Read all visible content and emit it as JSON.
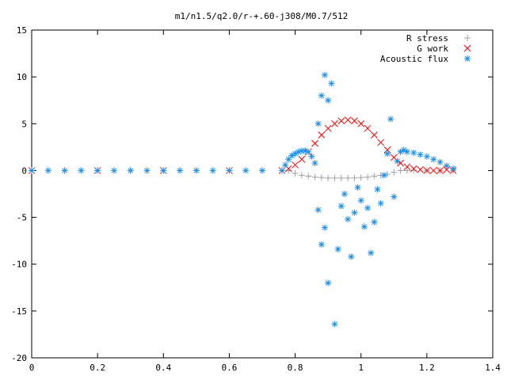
{
  "chart_data": {
    "type": "scatter",
    "title": "m1/n1.5/q2.0/r-+.60-j308/M0.7/512",
    "xlabel": "",
    "ylabel": "",
    "xlim": [
      0,
      1.4
    ],
    "ylim": [
      -20,
      15
    ],
    "x_ticks": [
      "0",
      "0.2",
      "0.4",
      "0.6",
      "0.8",
      "1",
      "1.2",
      "1.4"
    ],
    "y_ticks": [
      "15",
      "10",
      "5",
      "0",
      "-5",
      "-10",
      "-15",
      "-20"
    ],
    "grid": false,
    "legend_position": "top-right",
    "series": [
      {
        "name": "R stress",
        "marker": "+",
        "color": "#a0a0a0",
        "points": [
          [
            0.0,
            0.0
          ],
          [
            0.1,
            0.0
          ],
          [
            0.2,
            0.0
          ],
          [
            0.3,
            0.0
          ],
          [
            0.4,
            0.0
          ],
          [
            0.5,
            0.0
          ],
          [
            0.6,
            0.0
          ],
          [
            0.7,
            0.0
          ],
          [
            0.76,
            0.0
          ],
          [
            0.78,
            0.0
          ],
          [
            0.8,
            -0.3
          ],
          [
            0.82,
            -0.5
          ],
          [
            0.84,
            -0.6
          ],
          [
            0.86,
            -0.7
          ],
          [
            0.88,
            -0.75
          ],
          [
            0.9,
            -0.8
          ],
          [
            0.92,
            -0.8
          ],
          [
            0.94,
            -0.8
          ],
          [
            0.96,
            -0.8
          ],
          [
            0.98,
            -0.8
          ],
          [
            1.0,
            -0.75
          ],
          [
            1.02,
            -0.7
          ],
          [
            1.04,
            -0.6
          ],
          [
            1.06,
            -0.5
          ],
          [
            1.08,
            -0.4
          ],
          [
            1.1,
            -0.2
          ],
          [
            1.12,
            0.0
          ],
          [
            1.14,
            0.0
          ],
          [
            1.16,
            0.0
          ],
          [
            1.2,
            0.0
          ],
          [
            1.24,
            0.0
          ],
          [
            1.28,
            0.0
          ]
        ]
      },
      {
        "name": "G work",
        "marker": "x",
        "color": "#ff0000",
        "points": [
          [
            0.0,
            0.0
          ],
          [
            0.2,
            0.0
          ],
          [
            0.4,
            0.0
          ],
          [
            0.6,
            0.0
          ],
          [
            0.76,
            0.0
          ],
          [
            0.78,
            0.2
          ],
          [
            0.8,
            0.6
          ],
          [
            0.82,
            1.2
          ],
          [
            0.84,
            2.0
          ],
          [
            0.86,
            2.9
          ],
          [
            0.88,
            3.8
          ],
          [
            0.9,
            4.5
          ],
          [
            0.92,
            5.0
          ],
          [
            0.94,
            5.3
          ],
          [
            0.96,
            5.4
          ],
          [
            0.98,
            5.3
          ],
          [
            1.0,
            5.0
          ],
          [
            1.02,
            4.5
          ],
          [
            1.04,
            3.8
          ],
          [
            1.06,
            3.0
          ],
          [
            1.08,
            2.2
          ],
          [
            1.1,
            1.4
          ],
          [
            1.12,
            0.8
          ],
          [
            1.14,
            0.4
          ],
          [
            1.16,
            0.2
          ],
          [
            1.18,
            0.1
          ],
          [
            1.2,
            0.0
          ],
          [
            1.22,
            0.0
          ],
          [
            1.24,
            0.0
          ],
          [
            1.26,
            0.1
          ],
          [
            1.28,
            0.0
          ]
        ]
      },
      {
        "name": "Acoustic flux",
        "marker": "*",
        "color": "#1e90e6",
        "points": [
          [
            0.0,
            0.0
          ],
          [
            0.05,
            0.0
          ],
          [
            0.1,
            0.0
          ],
          [
            0.15,
            0.0
          ],
          [
            0.2,
            0.0
          ],
          [
            0.25,
            0.0
          ],
          [
            0.3,
            0.0
          ],
          [
            0.35,
            0.0
          ],
          [
            0.4,
            0.0
          ],
          [
            0.45,
            0.0
          ],
          [
            0.5,
            0.0
          ],
          [
            0.55,
            0.0
          ],
          [
            0.6,
            0.0
          ],
          [
            0.65,
            0.0
          ],
          [
            0.7,
            0.0
          ],
          [
            0.76,
            0.0
          ],
          [
            0.77,
            0.6
          ],
          [
            0.78,
            1.2
          ],
          [
            0.79,
            1.6
          ],
          [
            0.8,
            1.8
          ],
          [
            0.81,
            2.0
          ],
          [
            0.82,
            2.1
          ],
          [
            0.83,
            2.1
          ],
          [
            0.84,
            2.0
          ],
          [
            0.85,
            1.5
          ],
          [
            0.86,
            0.8
          ],
          [
            0.87,
            5.0
          ],
          [
            0.88,
            8.0
          ],
          [
            0.89,
            10.2
          ],
          [
            0.9,
            7.5
          ],
          [
            0.91,
            9.3
          ],
          [
            0.87,
            -4.2
          ],
          [
            0.88,
            -7.9
          ],
          [
            0.89,
            -6.1
          ],
          [
            0.9,
            -12.0
          ],
          [
            0.92,
            -16.4
          ],
          [
            0.93,
            -8.4
          ],
          [
            0.94,
            -3.8
          ],
          [
            0.95,
            -2.5
          ],
          [
            0.96,
            -5.2
          ],
          [
            0.97,
            -9.2
          ],
          [
            0.98,
            -4.5
          ],
          [
            0.99,
            -1.8
          ],
          [
            1.0,
            -3.2
          ],
          [
            1.01,
            -6.0
          ],
          [
            1.02,
            -4.0
          ],
          [
            1.03,
            -8.8
          ],
          [
            1.04,
            -5.5
          ],
          [
            1.05,
            -2.0
          ],
          [
            1.06,
            -3.5
          ],
          [
            1.07,
            -0.5
          ],
          [
            1.08,
            1.8
          ],
          [
            1.09,
            5.5
          ],
          [
            1.1,
            -2.8
          ],
          [
            1.11,
            1.0
          ],
          [
            1.12,
            2.0
          ],
          [
            1.13,
            2.2
          ],
          [
            1.14,
            2.0
          ],
          [
            1.16,
            1.9
          ],
          [
            1.18,
            1.7
          ],
          [
            1.2,
            1.5
          ],
          [
            1.22,
            1.2
          ],
          [
            1.24,
            0.9
          ],
          [
            1.26,
            0.5
          ],
          [
            1.28,
            0.2
          ]
        ]
      }
    ]
  }
}
